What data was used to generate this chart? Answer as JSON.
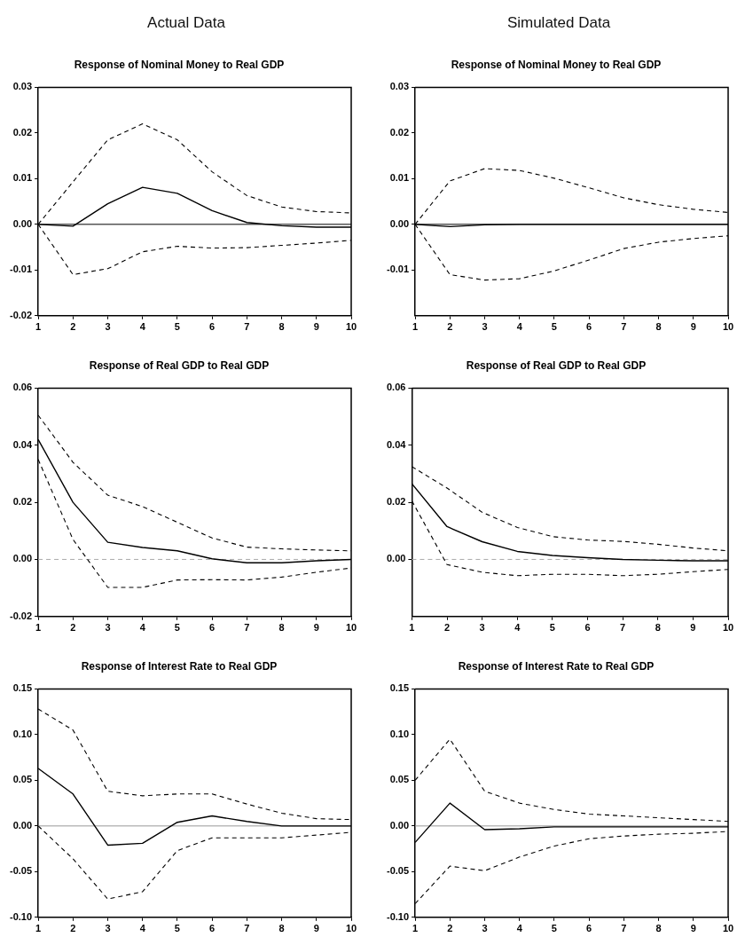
{
  "chart_data": [
    {
      "type": "other",
      "title": "Actual Data"
    },
    {
      "type": "other",
      "title": "Simulated Data"
    },
    {
      "type": "line",
      "title": "Response of Nominal Money to Real GDP",
      "x": [
        1,
        2,
        3,
        4,
        5,
        6,
        7,
        8,
        9,
        10
      ],
      "xlim": [
        1,
        10
      ],
      "xticks": [
        1,
        2,
        3,
        4,
        5,
        6,
        7,
        8,
        9,
        10
      ],
      "ylim": [
        -0.02,
        0.03
      ],
      "yticks": [
        0.03,
        0.02,
        0.01,
        {
          "value": 0,
          "label": "0.00"
        },
        -0.01,
        -0.02
      ],
      "grid": false,
      "legend": false,
      "marker": "none",
      "ref_lines": [
        {
          "axis": "y",
          "value": 0,
          "color": "#000000",
          "line_style": "solid"
        }
      ],
      "series": [
        {
          "color": "#000000",
          "line_style": "solid",
          "values": [
            0,
            -0.0004,
            0.0045,
            0.0081,
            0.0068,
            0.003,
            0.0004,
            -0.0003,
            -0.0006,
            -0.0006
          ]
        },
        {
          "color": "#000000",
          "line_style": "dashed",
          "values": [
            0,
            0.0093,
            0.0185,
            0.022,
            0.0185,
            0.0115,
            0.0063,
            0.0038,
            0.0028,
            0.0025
          ]
        },
        {
          "color": "#000000",
          "line_style": "dashed",
          "values": [
            0,
            -0.011,
            -0.0097,
            -0.006,
            -0.0048,
            -0.0052,
            -0.0051,
            -0.0046,
            -0.0041,
            -0.0035
          ]
        }
      ]
    },
    {
      "type": "line",
      "title": "Response of Nominal Money to Real GDP",
      "x": [
        1,
        2,
        3,
        4,
        5,
        6,
        7,
        8,
        9,
        10
      ],
      "xlim": [
        1,
        10
      ],
      "xticks": [
        1,
        2,
        3,
        4,
        5,
        6,
        7,
        8,
        9,
        10
      ],
      "ylim": [
        -0.02,
        0.03
      ],
      "yticks": [
        0.03,
        0.02,
        0.01,
        {
          "value": 0,
          "label": "0.00"
        },
        -0.01
      ],
      "grid": false,
      "legend": false,
      "marker": "none",
      "ref_lines": [
        {
          "axis": "y",
          "value": 0,
          "color": "#000000",
          "line_style": "solid"
        }
      ],
      "series": [
        {
          "color": "#000000",
          "line_style": "solid",
          "values": [
            0,
            -0.0005,
            -0.0001,
            0,
            0,
            0,
            0,
            0,
            0,
            0
          ]
        },
        {
          "color": "#000000",
          "line_style": "dashed",
          "values": [
            0,
            0.0095,
            0.0122,
            0.0118,
            0.0101,
            0.008,
            0.0058,
            0.0043,
            0.0033,
            0.0026
          ]
        },
        {
          "color": "#000000",
          "line_style": "dashed",
          "values": [
            0,
            -0.011,
            -0.0122,
            -0.0119,
            -0.0102,
            -0.0078,
            -0.0053,
            -0.0039,
            -0.0031,
            -0.0025
          ]
        }
      ]
    },
    {
      "type": "line",
      "title": "Response of Real GDP to Real GDP",
      "x": [
        1,
        2,
        3,
        4,
        5,
        6,
        7,
        8,
        9,
        10
      ],
      "xlim": [
        1,
        10
      ],
      "xticks": [
        1,
        2,
        3,
        4,
        5,
        6,
        7,
        8,
        9,
        10
      ],
      "ylim": [
        -0.02,
        0.06
      ],
      "yticks": [
        0.06,
        0.04,
        0.02,
        {
          "value": 0,
          "label": "0.00"
        },
        -0.02
      ],
      "grid": false,
      "legend": false,
      "marker": "none",
      "ref_lines": [
        {
          "axis": "y",
          "value": 0,
          "color": "#aaaaaa",
          "line_style": "dashed"
        }
      ],
      "series": [
        {
          "color": "#000000",
          "line_style": "solid",
          "values": [
            0.042,
            0.02,
            0.006,
            0.0042,
            0.003,
            0.0002,
            -0.0012,
            -0.0012,
            -0.0005,
            0
          ]
        },
        {
          "color": "#000000",
          "line_style": "dashed",
          "values": [
            0.0505,
            0.034,
            0.0225,
            0.0185,
            0.013,
            0.0075,
            0.0043,
            0.0037,
            0.0033,
            0.003
          ]
        },
        {
          "color": "#000000",
          "line_style": "dashed",
          "values": [
            0.035,
            0.007,
            -0.0098,
            -0.0098,
            -0.0072,
            -0.0071,
            -0.0072,
            -0.0062,
            -0.0045,
            -0.003
          ]
        }
      ]
    },
    {
      "type": "line",
      "title": "Response of Real GDP to Real GDP",
      "x": [
        1,
        2,
        3,
        4,
        5,
        6,
        7,
        8,
        9,
        10
      ],
      "xlim": [
        1,
        10
      ],
      "xticks": [
        1,
        2,
        3,
        4,
        5,
        6,
        7,
        8,
        9,
        10
      ],
      "ylim": [
        -0.02,
        0.06
      ],
      "yticks": [
        0.06,
        0.04,
        0.02,
        {
          "value": 0,
          "label": "0.00"
        }
      ],
      "grid": false,
      "legend": false,
      "marker": "none",
      "ref_lines": [
        {
          "axis": "y",
          "value": 0,
          "color": "#aaaaaa",
          "line_style": "dashed"
        }
      ],
      "series": [
        {
          "color": "#000000",
          "line_style": "solid",
          "values": [
            0.0265,
            0.0115,
            0.0062,
            0.0028,
            0.0014,
            0.0006,
            0,
            -0.0003,
            -0.0005,
            -0.0005
          ]
        },
        {
          "color": "#000000",
          "line_style": "dashed",
          "values": [
            0.0325,
            0.025,
            0.0165,
            0.0112,
            0.008,
            0.0068,
            0.0063,
            0.0053,
            0.004,
            0.003
          ]
        },
        {
          "color": "#000000",
          "line_style": "dashed",
          "values": [
            0.0205,
            -0.0018,
            -0.0045,
            -0.0057,
            -0.0052,
            -0.0052,
            -0.0057,
            -0.0052,
            -0.0043,
            -0.0035
          ]
        }
      ]
    },
    {
      "type": "line",
      "title": "Response of Interest Rate to Real GDP",
      "x": [
        1,
        2,
        3,
        4,
        5,
        6,
        7,
        8,
        9,
        10
      ],
      "xlim": [
        1,
        10
      ],
      "xticks": [
        1,
        2,
        3,
        4,
        5,
        6,
        7,
        8,
        9,
        10
      ],
      "ylim": [
        -0.1,
        0.15
      ],
      "yticks": [
        0.15,
        {
          "value": 0.1,
          "label": "0.10"
        },
        0.05,
        {
          "value": 0,
          "label": "0.00"
        },
        -0.05,
        {
          "value": -0.1,
          "label": "-0.10"
        }
      ],
      "grid": false,
      "legend": false,
      "marker": "none",
      "ref_lines": [
        {
          "axis": "y",
          "value": 0,
          "color": "#999999",
          "line_style": "solid"
        }
      ],
      "series": [
        {
          "color": "#000000",
          "line_style": "solid",
          "values": [
            0.063,
            0.035,
            -0.021,
            -0.019,
            0.004,
            0.011,
            0.005,
            0,
            0,
            0
          ]
        },
        {
          "color": "#000000",
          "line_style": "dashed",
          "values": [
            0.128,
            0.105,
            0.038,
            0.033,
            0.035,
            0.035,
            0.024,
            0.014,
            0.008,
            0.007
          ]
        },
        {
          "color": "#000000",
          "line_style": "dashed",
          "values": [
            0,
            -0.036,
            -0.08,
            -0.072,
            -0.027,
            -0.013,
            -0.013,
            -0.013,
            -0.01,
            -0.007
          ]
        }
      ]
    },
    {
      "type": "line",
      "title": "Response of Interest Rate to Real GDP",
      "x": [
        1,
        2,
        3,
        4,
        5,
        6,
        7,
        8,
        9,
        10
      ],
      "xlim": [
        1,
        10
      ],
      "xticks": [
        1,
        2,
        3,
        4,
        5,
        6,
        7,
        8,
        9,
        10
      ],
      "ylim": [
        -0.1,
        0.15
      ],
      "yticks": [
        0.15,
        {
          "value": 0.1,
          "label": "0.10"
        },
        0.05,
        {
          "value": 0,
          "label": "0.00"
        },
        -0.05,
        {
          "value": -0.1,
          "label": "-0.10"
        }
      ],
      "grid": false,
      "legend": false,
      "marker": "none",
      "ref_lines": [
        {
          "axis": "y",
          "value": 0,
          "color": "#999999",
          "line_style": "solid"
        }
      ],
      "series": [
        {
          "color": "#000000",
          "line_style": "solid",
          "values": [
            -0.018,
            0.025,
            -0.004,
            -0.003,
            -0.001,
            -0.001,
            -0.001,
            -0.001,
            -0.001,
            -0.001
          ]
        },
        {
          "color": "#000000",
          "line_style": "dashed",
          "values": [
            0.05,
            0.095,
            0.038,
            0.025,
            0.018,
            0.013,
            0.011,
            0.009,
            0.007,
            0.005
          ]
        },
        {
          "color": "#000000",
          "line_style": "dashed",
          "values": [
            -0.085,
            -0.044,
            -0.049,
            -0.034,
            -0.022,
            -0.014,
            -0.011,
            -0.009,
            -0.008,
            -0.006
          ]
        }
      ]
    }
  ]
}
